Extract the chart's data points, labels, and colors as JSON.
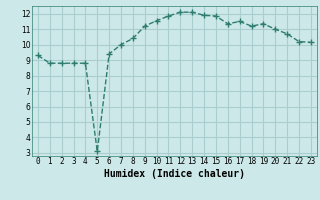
{
  "x": [
    0,
    1,
    2,
    3,
    4,
    5,
    6,
    7,
    8,
    9,
    10,
    11,
    12,
    13,
    14,
    15,
    16,
    17,
    18,
    19,
    20,
    21,
    22,
    23
  ],
  "y": [
    9.3,
    8.8,
    8.8,
    8.8,
    8.8,
    3.1,
    9.4,
    10.0,
    10.4,
    11.2,
    11.55,
    11.85,
    12.1,
    12.1,
    11.9,
    11.85,
    11.35,
    11.5,
    11.2,
    11.35,
    11.0,
    10.7,
    10.2,
    10.15
  ],
  "line_color": "#2e7d6e",
  "bg_color": "#cce8e8",
  "grid_color": "#aacece",
  "xlabel": "Humidex (Indice chaleur)",
  "ylim": [
    2.8,
    12.5
  ],
  "xlim": [
    -0.5,
    23.5
  ],
  "yticks": [
    3,
    4,
    5,
    6,
    7,
    8,
    9,
    10,
    11,
    12
  ],
  "xticks": [
    0,
    1,
    2,
    3,
    4,
    5,
    6,
    7,
    8,
    9,
    10,
    11,
    12,
    13,
    14,
    15,
    16,
    17,
    18,
    19,
    20,
    21,
    22,
    23
  ],
  "marker": "+",
  "markersize": 4,
  "linewidth": 1.0,
  "tick_fontsize": 5.5,
  "xlabel_fontsize": 7
}
